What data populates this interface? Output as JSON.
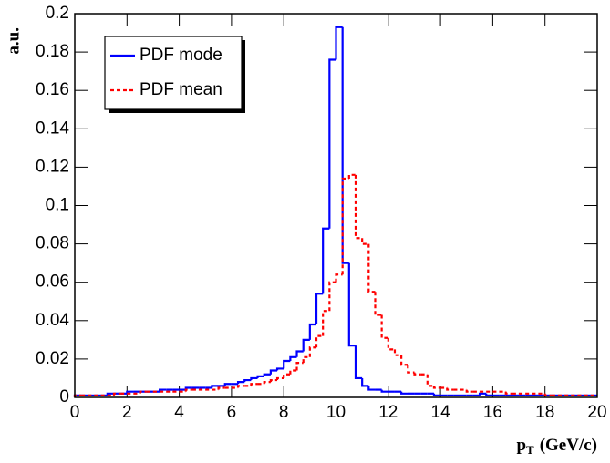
{
  "chart_data": {
    "type": "histogram",
    "y_label": "a.u.",
    "x_label": [
      "p",
      "T",
      "(GeV/c)"
    ],
    "bins": [
      0,
      0.25,
      0.5,
      0.75,
      1,
      1.25,
      1.5,
      1.75,
      2,
      2.25,
      2.5,
      2.75,
      3,
      3.25,
      3.5,
      3.75,
      4,
      4.25,
      4.5,
      4.75,
      5,
      5.25,
      5.5,
      5.75,
      6,
      6.25,
      6.5,
      6.75,
      7,
      7.25,
      7.5,
      7.75,
      8,
      8.25,
      8.5,
      8.75,
      9,
      9.25,
      9.5,
      9.75,
      10,
      10.25,
      10.5,
      10.75,
      11,
      11.25,
      11.5,
      11.75,
      12,
      12.25,
      12.5,
      12.75,
      13,
      13.25,
      13.5,
      13.75,
      14,
      14.25,
      14.5,
      14.75,
      15,
      15.25,
      15.5,
      15.75,
      16,
      16.25,
      16.5,
      16.75,
      17,
      17.25,
      17.5,
      17.75,
      18,
      18.25,
      18.5,
      18.75,
      19,
      19.25,
      19.5,
      19.75,
      20
    ],
    "series": [
      {
        "name": "PDF mode",
        "color": "#0000ff",
        "dashed": false,
        "values": [
          0.001,
          0.001,
          0.001,
          0.001,
          0.001,
          0.002,
          0.002,
          0.002,
          0.003,
          0.003,
          0.003,
          0.003,
          0.003,
          0.004,
          0.004,
          0.004,
          0.004,
          0.005,
          0.005,
          0.005,
          0.005,
          0.006,
          0.006,
          0.007,
          0.007,
          0.008,
          0.009,
          0.01,
          0.011,
          0.012,
          0.014,
          0.015,
          0.019,
          0.021,
          0.024,
          0.03,
          0.038,
          0.054,
          0.088,
          0.176,
          0.193,
          0.07,
          0.027,
          0.01,
          0.006,
          0.004,
          0.004,
          0.003,
          0.003,
          0.003,
          0.002,
          0.002,
          0.002,
          0.002,
          0.002,
          0.001,
          0.001,
          0.001,
          0.001,
          0.001,
          0.001,
          0.001,
          0.002,
          0.001,
          0.001,
          0.001,
          0.001,
          0.001,
          0.001,
          0.001,
          0.001,
          0.001,
          0.001,
          0.001,
          0.001,
          0.001,
          0.001,
          0.001,
          0.001,
          0.001
        ]
      },
      {
        "name": "PDF mean",
        "color": "#ff0000",
        "dashed": true,
        "values": [
          0.001,
          0.001,
          0.001,
          0.001,
          0.001,
          0.001,
          0.002,
          0.002,
          0.002,
          0.002,
          0.003,
          0.003,
          0.003,
          0.003,
          0.003,
          0.003,
          0.003,
          0.004,
          0.004,
          0.004,
          0.004,
          0.004,
          0.005,
          0.005,
          0.005,
          0.006,
          0.006,
          0.007,
          0.007,
          0.008,
          0.009,
          0.01,
          0.012,
          0.014,
          0.018,
          0.021,
          0.026,
          0.032,
          0.045,
          0.06,
          0.064,
          0.114,
          0.116,
          0.083,
          0.08,
          0.055,
          0.043,
          0.031,
          0.025,
          0.022,
          0.017,
          0.013,
          0.012,
          0.012,
          0.006,
          0.005,
          0.005,
          0.004,
          0.004,
          0.004,
          0.003,
          0.003,
          0.003,
          0.003,
          0.003,
          0.003,
          0.002,
          0.002,
          0.002,
          0.002,
          0.002,
          0.002,
          0.001,
          0.001,
          0.001,
          0.001,
          0.001,
          0.001,
          0.001,
          0.001
        ]
      }
    ],
    "xlim": [
      0,
      20
    ],
    "xticks": [
      0,
      2,
      4,
      6,
      8,
      10,
      12,
      14,
      16,
      18,
      20
    ],
    "ylim": [
      0,
      0.2
    ],
    "yticks": [
      0,
      0.02,
      0.04,
      0.06,
      0.08,
      0.1,
      0.12,
      0.14,
      0.16,
      0.18,
      0.2
    ],
    "legend": "top-left"
  }
}
